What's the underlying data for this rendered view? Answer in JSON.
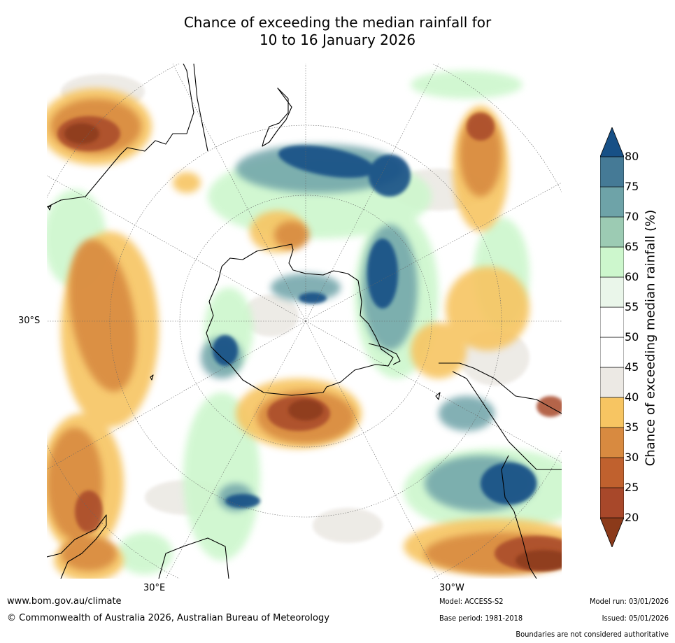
{
  "title": {
    "line1": "Chance of exceeding the median rainfall for",
    "line2": "10 to 16 January 2026"
  },
  "map": {
    "projection": "south polar stereographic",
    "lat_labels": [
      "30°S"
    ],
    "lon_labels": [
      "30°E",
      "30°W"
    ]
  },
  "colorbar": {
    "label": "Chance of exceeding median rainfall (%)",
    "ticks": [
      "20",
      "25",
      "30",
      "35",
      "40",
      "45",
      "50",
      "55",
      "60",
      "65",
      "70",
      "75",
      "80"
    ],
    "colors": [
      "#8b3a1a",
      "#a8482a",
      "#c0612e",
      "#d88a40",
      "#f7c562",
      "#ece9e4",
      "#ffffff",
      "#ffffff",
      "#eaf6ea",
      "#cdf7cd",
      "#9ccbb3",
      "#6ea3a8",
      "#457a96",
      "#175086"
    ],
    "extend": "both"
  },
  "footer": {
    "url": "www.bom.gov.au/climate",
    "copyright": "© Commonwealth of Australia 2026, Australian Bureau of Meteorology",
    "model": "Model: ACCESS-S2",
    "base_period": "Base period: 1981-2018",
    "model_run": "Model run: 03/01/2026",
    "issued": "Issued: 05/01/2026",
    "disclaimer": "Boundaries are not considered authoritative"
  }
}
